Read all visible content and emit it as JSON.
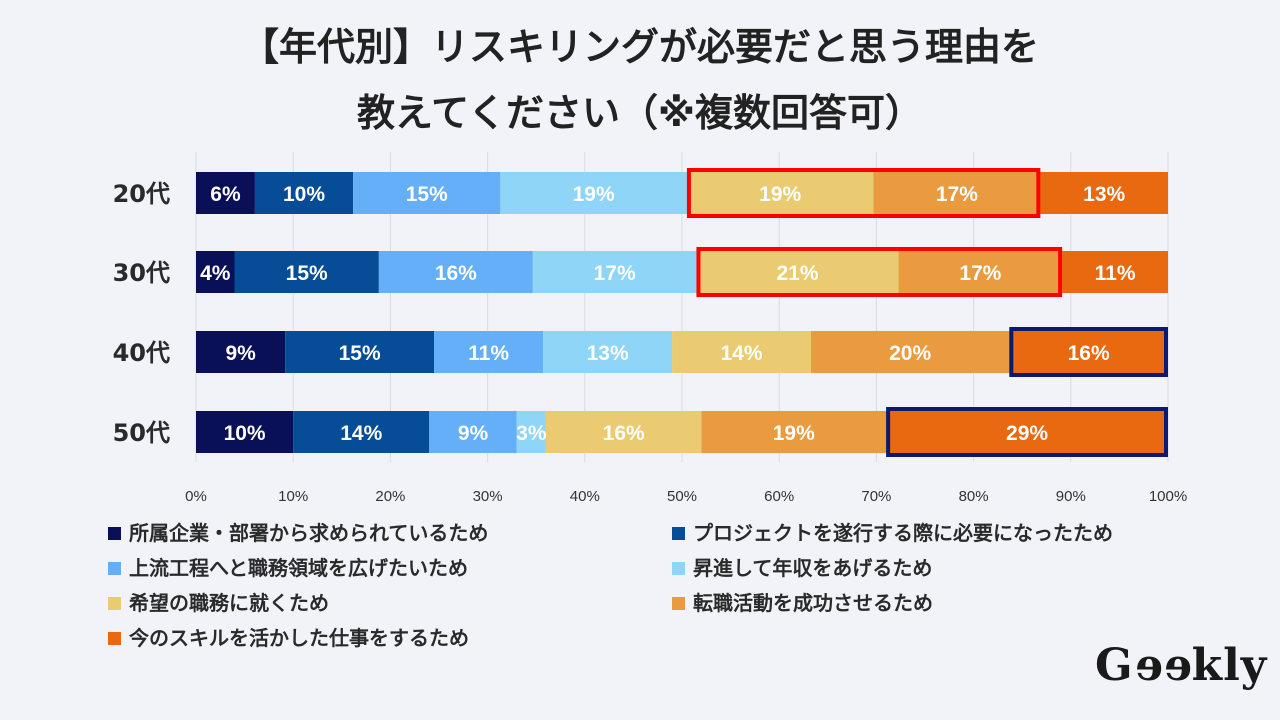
{
  "chart_data": {
    "type": "bar",
    "orientation": "horizontal-stacked-100",
    "title_line1": "【年代別】リスキリングが必要だと思う理由を",
    "title_line2": "教えてください（※複数回答可）",
    "categories": [
      "20代",
      "30代",
      "40代",
      "50代"
    ],
    "xlim": [
      0,
      100
    ],
    "xticks": [
      "0%",
      "10%",
      "20%",
      "30%",
      "40%",
      "50%",
      "60%",
      "70%",
      "80%",
      "90%",
      "100%"
    ],
    "grid": true,
    "legend_position": "bottom",
    "series": [
      {
        "name": "所属企業・部署から求められているため",
        "color": "#0a1058",
        "values": [
          6,
          4,
          9,
          10
        ]
      },
      {
        "name": "プロジェクトを遂行する際に必要になったため",
        "color": "#064c96",
        "values": [
          10,
          15,
          15,
          14
        ]
      },
      {
        "name": "上流工程へと職務領域を広げたいため",
        "color": "#64aff7",
        "values": [
          15,
          16,
          11,
          9
        ]
      },
      {
        "name": "昇進して年収をあげるため",
        "color": "#8fd5f8",
        "values": [
          19,
          17,
          13,
          3
        ]
      },
      {
        "name": "希望の職務に就くため",
        "color": "#eacb72",
        "values": [
          19,
          21,
          14,
          16
        ]
      },
      {
        "name": "転職活動を成功させるため",
        "color": "#ea9b40",
        "values": [
          17,
          17,
          20,
          19
        ]
      },
      {
        "name": "今のスキルを活かした仕事をするため",
        "color": "#e8690f",
        "values": [
          13,
          11,
          16,
          29
        ]
      }
    ],
    "highlights": [
      {
        "row": 0,
        "from": 4,
        "to": 5,
        "color": "#ff0000"
      },
      {
        "row": 1,
        "from": 4,
        "to": 5,
        "color": "#ff0000"
      },
      {
        "row": 2,
        "from": 6,
        "to": 6,
        "color": "#0a1a6e"
      },
      {
        "row": 3,
        "from": 6,
        "to": 6,
        "color": "#0a1a6e"
      }
    ]
  },
  "logo": "Geekly"
}
